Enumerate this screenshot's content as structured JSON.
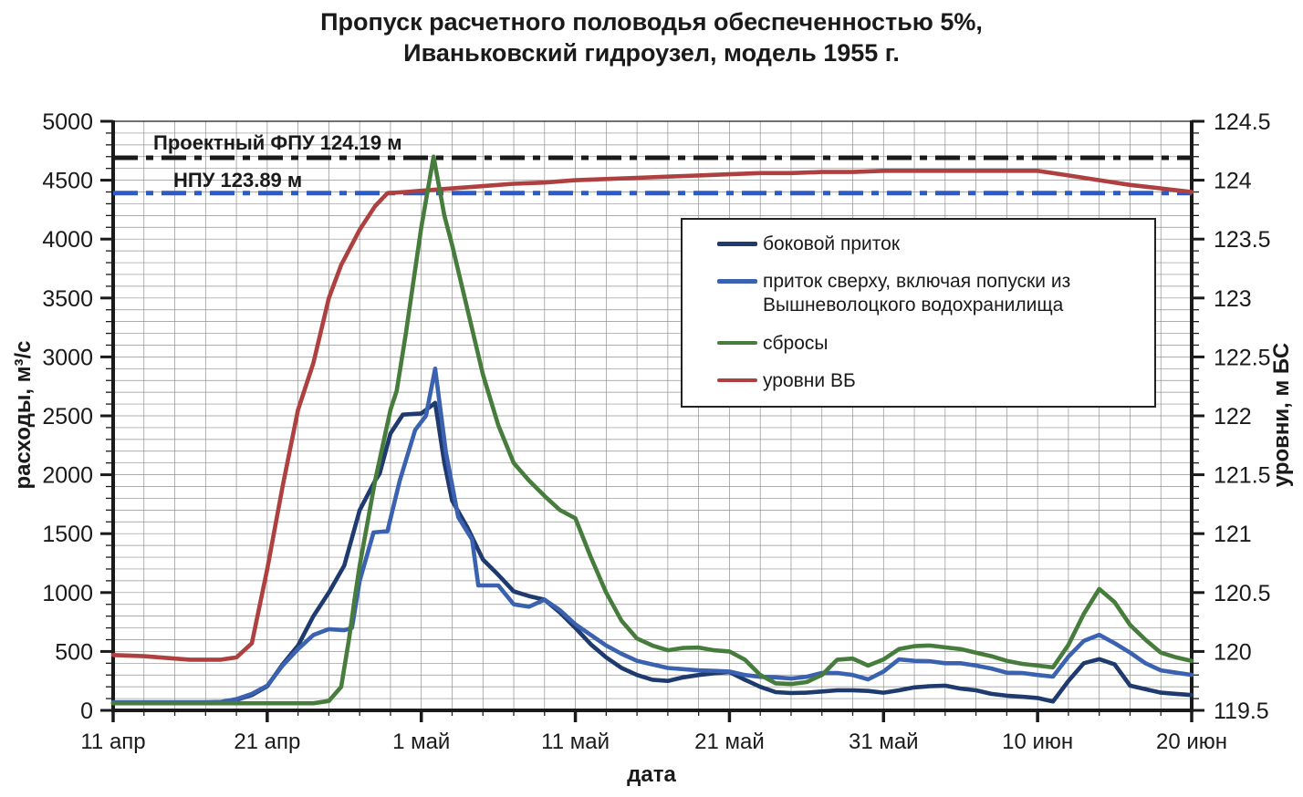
{
  "title": {
    "line1": "Пропуск расчетного половодья обеспеченностью 5%,",
    "line2": "Иваньковский гидроузел, модель 1955 г."
  },
  "colors": {
    "axis": "#1a1a1a",
    "grid": "#909090",
    "background": "#ffffff",
    "fpu_line": "#1a1a1a",
    "npu_line": "#2b5bcb"
  },
  "chart_data": {
    "type": "line",
    "title": "Пропуск расчетного половодья обеспеченностью 5%, Иваньковский гидроузел, модель 1955 г.",
    "grid": "on",
    "legend_position": "inside-upper-right",
    "x_axis": {
      "label": "дата",
      "range_days": [
        0,
        70
      ],
      "minor_step_days": 2,
      "tick_days": [
        0,
        10,
        20,
        30,
        40,
        50,
        60,
        70
      ],
      "tick_labels": [
        "11 апр",
        "21 апр",
        "1 май",
        "11 май",
        "21 май",
        "31 май",
        "10 июн",
        "20 июн"
      ]
    },
    "y_left": {
      "label": "расходы, м³/с",
      "range": [
        0,
        5000
      ],
      "major_step": 500,
      "minor_step": 100,
      "tick_labels": [
        "0",
        "500",
        "1000",
        "1500",
        "2000",
        "2500",
        "3000",
        "3500",
        "4000",
        "4500",
        "5000"
      ]
    },
    "y_right": {
      "label": "уровни, м БС",
      "range": [
        119.5,
        124.5
      ],
      "major_step": 0.5,
      "minor_step": 0.1,
      "tick_labels": [
        "119.5",
        "120",
        "120.5",
        "121",
        "121.5",
        "122",
        "122.5",
        "123",
        "123.5",
        "124",
        "124.5"
      ]
    },
    "reference_lines": [
      {
        "id": "fpu",
        "label": "Проектный ФПУ 124.19 м",
        "value": 124.19,
        "axis": "right",
        "color": "#1a1a1a",
        "style": "dashdot"
      },
      {
        "id": "npu",
        "label": "НПУ 123.89 м",
        "value": 123.89,
        "axis": "right",
        "color": "#2b5bcb",
        "style": "dashdot"
      }
    ],
    "series": [
      {
        "id": "bokovoy-pritok",
        "name": "боковой приток",
        "axis": "left",
        "color": "#1f3a6e",
        "points": [
          [
            0,
            60
          ],
          [
            2,
            60
          ],
          [
            4,
            60
          ],
          [
            6,
            62
          ],
          [
            7,
            65
          ],
          [
            8,
            90
          ],
          [
            9,
            130
          ],
          [
            10,
            205
          ],
          [
            11,
            390
          ],
          [
            12,
            550
          ],
          [
            13,
            800
          ],
          [
            14,
            1000
          ],
          [
            15,
            1230
          ],
          [
            16,
            1700
          ],
          [
            17,
            1950
          ],
          [
            17.3,
            2010
          ],
          [
            18,
            2350
          ],
          [
            18.8,
            2510
          ],
          [
            20,
            2520
          ],
          [
            20.9,
            2610
          ],
          [
            21.5,
            2100
          ],
          [
            22,
            1780
          ],
          [
            23,
            1550
          ],
          [
            24,
            1280
          ],
          [
            25,
            1150
          ],
          [
            26,
            1010
          ],
          [
            27,
            970
          ],
          [
            28,
            940
          ],
          [
            29,
            830
          ],
          [
            30,
            700
          ],
          [
            31,
            560
          ],
          [
            32,
            450
          ],
          [
            33,
            360
          ],
          [
            34,
            300
          ],
          [
            35,
            260
          ],
          [
            36,
            250
          ],
          [
            37,
            280
          ],
          [
            38,
            300
          ],
          [
            39,
            315
          ],
          [
            40,
            325
          ],
          [
            41,
            260
          ],
          [
            42,
            200
          ],
          [
            43,
            155
          ],
          [
            44,
            147
          ],
          [
            45,
            150
          ],
          [
            46,
            160
          ],
          [
            47,
            170
          ],
          [
            48,
            170
          ],
          [
            49,
            165
          ],
          [
            50,
            150
          ],
          [
            51,
            170
          ],
          [
            52,
            195
          ],
          [
            53,
            205
          ],
          [
            54,
            210
          ],
          [
            55,
            185
          ],
          [
            56,
            170
          ],
          [
            57,
            140
          ],
          [
            58,
            125
          ],
          [
            59,
            115
          ],
          [
            60,
            105
          ],
          [
            61,
            75
          ],
          [
            62,
            250
          ],
          [
            63,
            400
          ],
          [
            64,
            435
          ],
          [
            65,
            390
          ],
          [
            66,
            210
          ],
          [
            67,
            180
          ],
          [
            68,
            150
          ],
          [
            69,
            140
          ],
          [
            70,
            130
          ]
        ]
      },
      {
        "id": "pritok-sverhu",
        "name": "приток сверху, включая попуски из Вышневолоцкого водохранилища",
        "axis": "left",
        "color": "#3a62b0",
        "points": [
          [
            0,
            70
          ],
          [
            2,
            70
          ],
          [
            4,
            70
          ],
          [
            6,
            70
          ],
          [
            7,
            72
          ],
          [
            8,
            95
          ],
          [
            9,
            140
          ],
          [
            10,
            210
          ],
          [
            11,
            380
          ],
          [
            12,
            520
          ],
          [
            13,
            640
          ],
          [
            14,
            690
          ],
          [
            15,
            680
          ],
          [
            15.5,
            700
          ],
          [
            16,
            1100
          ],
          [
            16.9,
            1510
          ],
          [
            17.8,
            1520
          ],
          [
            18.6,
            1950
          ],
          [
            19.6,
            2380
          ],
          [
            20.3,
            2500
          ],
          [
            20.9,
            2900
          ],
          [
            21.6,
            2190
          ],
          [
            22.4,
            1640
          ],
          [
            23.3,
            1450
          ],
          [
            23.7,
            1060
          ],
          [
            25,
            1060
          ],
          [
            26,
            900
          ],
          [
            27,
            880
          ],
          [
            28,
            940
          ],
          [
            29,
            850
          ],
          [
            30,
            730
          ],
          [
            31,
            640
          ],
          [
            32,
            550
          ],
          [
            33,
            480
          ],
          [
            34,
            420
          ],
          [
            35,
            390
          ],
          [
            36,
            360
          ],
          [
            37,
            350
          ],
          [
            38,
            340
          ],
          [
            39,
            335
          ],
          [
            40,
            330
          ],
          [
            41,
            300
          ],
          [
            42,
            285
          ],
          [
            43,
            280
          ],
          [
            44,
            270
          ],
          [
            45,
            285
          ],
          [
            46,
            317
          ],
          [
            47,
            317
          ],
          [
            48,
            300
          ],
          [
            49,
            263
          ],
          [
            50,
            330
          ],
          [
            51,
            433
          ],
          [
            52,
            420
          ],
          [
            53,
            417
          ],
          [
            54,
            400
          ],
          [
            55,
            400
          ],
          [
            56,
            380
          ],
          [
            57,
            355
          ],
          [
            58,
            320
          ],
          [
            59,
            317
          ],
          [
            60,
            300
          ],
          [
            61,
            286
          ],
          [
            62,
            456
          ],
          [
            63,
            590
          ],
          [
            64,
            641
          ],
          [
            65,
            570
          ],
          [
            66,
            490
          ],
          [
            67,
            400
          ],
          [
            68,
            340
          ],
          [
            69,
            320
          ],
          [
            70,
            301
          ]
        ]
      },
      {
        "id": "sbrosy",
        "name": "сбросы",
        "axis": "left",
        "color": "#467c3c",
        "points": [
          [
            0,
            60
          ],
          [
            2,
            60
          ],
          [
            4,
            60
          ],
          [
            6,
            60
          ],
          [
            8,
            60
          ],
          [
            10,
            60
          ],
          [
            12,
            60
          ],
          [
            13,
            60
          ],
          [
            14,
            80
          ],
          [
            14.8,
            200
          ],
          [
            15.3,
            600
          ],
          [
            15.7,
            970
          ],
          [
            16,
            1230
          ],
          [
            17,
            1950
          ],
          [
            18,
            2550
          ],
          [
            18.4,
            2710
          ],
          [
            19,
            3200
          ],
          [
            20,
            4100
          ],
          [
            20.8,
            4700
          ],
          [
            21.5,
            4200
          ],
          [
            22,
            3950
          ],
          [
            23,
            3400
          ],
          [
            24,
            2850
          ],
          [
            25,
            2420
          ],
          [
            26,
            2100
          ],
          [
            27,
            1950
          ],
          [
            28,
            1820
          ],
          [
            29,
            1700
          ],
          [
            30,
            1630
          ],
          [
            31,
            1300
          ],
          [
            32,
            1000
          ],
          [
            33,
            760
          ],
          [
            34,
            610
          ],
          [
            35,
            550
          ],
          [
            36,
            510
          ],
          [
            37,
            530
          ],
          [
            38,
            533
          ],
          [
            39,
            510
          ],
          [
            40,
            500
          ],
          [
            41,
            430
          ],
          [
            42,
            300
          ],
          [
            43,
            230
          ],
          [
            44,
            224
          ],
          [
            45,
            240
          ],
          [
            46,
            300
          ],
          [
            47,
            430
          ],
          [
            48,
            440
          ],
          [
            49,
            380
          ],
          [
            50,
            433
          ],
          [
            51,
            520
          ],
          [
            52,
            545
          ],
          [
            53,
            550
          ],
          [
            54,
            535
          ],
          [
            55,
            520
          ],
          [
            56,
            490
          ],
          [
            57,
            460
          ],
          [
            58,
            420
          ],
          [
            59,
            395
          ],
          [
            60,
            380
          ],
          [
            61,
            365
          ],
          [
            62,
            556
          ],
          [
            63,
            820
          ],
          [
            64,
            1030
          ],
          [
            65,
            918
          ],
          [
            66,
            725
          ],
          [
            67,
            600
          ],
          [
            68,
            490
          ],
          [
            69,
            450
          ],
          [
            70,
            420
          ]
        ]
      },
      {
        "id": "urovni-vb",
        "name": "уровни ВБ",
        "axis": "right",
        "color": "#ae4040",
        "points": [
          [
            0,
            119.97
          ],
          [
            2,
            119.96
          ],
          [
            4,
            119.94
          ],
          [
            5,
            119.93
          ],
          [
            6,
            119.93
          ],
          [
            7,
            119.93
          ],
          [
            8,
            119.95
          ],
          [
            9,
            120.07
          ],
          [
            10,
            120.7
          ],
          [
            11,
            121.4
          ],
          [
            12,
            122.05
          ],
          [
            13,
            122.45
          ],
          [
            14,
            123.0
          ],
          [
            14.8,
            123.28
          ],
          [
            16,
            123.58
          ],
          [
            17,
            123.78
          ],
          [
            17.8,
            123.89
          ],
          [
            19,
            123.9
          ],
          [
            20,
            123.91
          ],
          [
            22,
            123.93
          ],
          [
            24,
            123.95
          ],
          [
            26,
            123.97
          ],
          [
            28,
            123.98
          ],
          [
            30,
            124.0
          ],
          [
            32,
            124.01
          ],
          [
            34,
            124.02
          ],
          [
            36,
            124.03
          ],
          [
            38,
            124.04
          ],
          [
            40,
            124.05
          ],
          [
            42,
            124.06
          ],
          [
            44,
            124.06
          ],
          [
            46,
            124.07
          ],
          [
            48,
            124.07
          ],
          [
            50,
            124.08
          ],
          [
            52,
            124.08
          ],
          [
            54,
            124.08
          ],
          [
            56,
            124.08
          ],
          [
            58,
            124.08
          ],
          [
            60,
            124.08
          ],
          [
            62,
            124.04
          ],
          [
            64,
            124.0
          ],
          [
            66,
            123.96
          ],
          [
            68,
            123.93
          ],
          [
            70,
            123.9
          ]
        ]
      }
    ]
  }
}
